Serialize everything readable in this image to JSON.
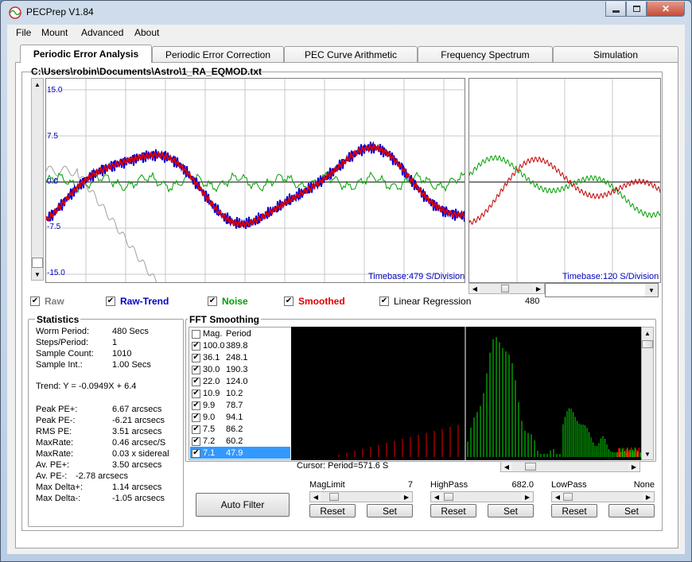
{
  "window": {
    "title": "PECPrep V1.84",
    "caption_buttons": [
      "minimize-icon",
      "maximize-icon",
      "close-icon"
    ]
  },
  "menu": [
    "File",
    "Mount",
    "Advanced",
    "About"
  ],
  "tabs": [
    "Periodic Error Analysis",
    "Periodic Error Correction",
    "PEC Curve Arithmetic",
    "Frequency Spectrum",
    "Simulation"
  ],
  "active_tab": "Periodic Error Analysis",
  "file_path": "C:\\Users\\robin\\Documents\\Astro\\1_RA_EQMOD.txt",
  "main_plot": {
    "y_ticks": [
      "15.0",
      "7.5",
      "0.0",
      "-7.5",
      "-15.0"
    ],
    "timebase": "Timebase:479 S/Division"
  },
  "side_plot": {
    "timebase": "Timebase:120 S/Division",
    "scroll_value": "480"
  },
  "series_toggles": [
    {
      "label": "Raw",
      "checked": true,
      "color": "#808080"
    },
    {
      "label": "Raw-Trend",
      "checked": true,
      "color": "#0000c0"
    },
    {
      "label": "Noise",
      "checked": true,
      "color": "#00a000"
    },
    {
      "label": "Smoothed",
      "checked": true,
      "color": "#e00000"
    },
    {
      "label": "Linear Regression",
      "checked": true,
      "color": "#000000"
    }
  ],
  "statistics": {
    "title": "Statistics",
    "rows": [
      {
        "label": "Worm Period:",
        "value": "480 Secs"
      },
      {
        "label": "Steps/Period:",
        "value": "1"
      },
      {
        "label": "Sample Count:",
        "value": "1010"
      },
      {
        "label": "Sample Int.:",
        "value": "1.00 Secs"
      }
    ],
    "trend": "Trend: Y = -0.0949X + 6.4",
    "rows2": [
      {
        "label": "Peak PE+:",
        "value": "6.67 arcsecs"
      },
      {
        "label": "Peak PE-:",
        "value": "-6.21 arcsecs"
      },
      {
        "label": "RMS PE:",
        "value": "3.51 arcsecs"
      },
      {
        "label": "MaxRate:",
        "value": "0.46 arcsec/S"
      },
      {
        "label": "MaxRate:",
        "value": "0.03 x sidereal"
      },
      {
        "label": "Av. PE+:",
        "value": "3.50 arcsecs"
      },
      {
        "label": "Av. PE-:",
        "value": "-2.78 arcsecs"
      },
      {
        "label": "Max Delta+:",
        "value": "1.14 arcsecs"
      },
      {
        "label": "Max Delta-:",
        "value": "-1.05 arcsecs"
      }
    ]
  },
  "fft": {
    "title": "FFT Smoothing",
    "columns": [
      "Mag.",
      "Period"
    ],
    "rows": [
      {
        "mag": "100.0",
        "period": "389.8",
        "checked": true
      },
      {
        "mag": "36.1",
        "period": "248.1",
        "checked": true
      },
      {
        "mag": "30.0",
        "period": "190.3",
        "checked": true
      },
      {
        "mag": "22.0",
        "period": "124.0",
        "checked": true
      },
      {
        "mag": "10.9",
        "period": "10.2",
        "checked": true
      },
      {
        "mag": "9.9",
        "period": "78.7",
        "checked": true
      },
      {
        "mag": "9.0",
        "period": "94.1",
        "checked": true
      },
      {
        "mag": "7.5",
        "period": "86.2",
        "checked": true
      },
      {
        "mag": "7.2",
        "period": "60.2",
        "checked": true
      },
      {
        "mag": "7.1",
        "period": "47.9",
        "checked": true,
        "selected": true
      }
    ],
    "cursor": "Cursor: Period=571.6 S"
  },
  "auto_filter": "Auto Filter",
  "controls": [
    {
      "label": "MagLimit",
      "value": "7",
      "reset": "Reset",
      "set": "Set"
    },
    {
      "label": "HighPass",
      "value": "682.0",
      "reset": "Reset",
      "set": "Set"
    },
    {
      "label": "LowPass",
      "value": "None",
      "reset": "Reset",
      "set": "Set"
    }
  ]
}
